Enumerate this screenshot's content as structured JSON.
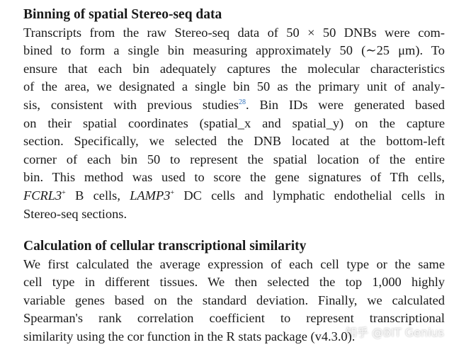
{
  "sections": [
    {
      "heading": "Binning of spatial Stereo-seq data",
      "lines": [
        [
          "Transcripts from the raw Stereo-seq data of 50 × 50 DNBs were com-"
        ],
        [
          "bined to form a single bin measuring approximately 50 (∼25 μm). To"
        ],
        [
          "ensure that each bin adequately captures the molecular characteristics"
        ],
        [
          "of the area, we designated a single bin 50 as the primary unit of analy-"
        ],
        [
          "sis, consistent with previous studies",
          {
            "text": "28",
            "style": "ref"
          },
          ". Bin IDs were generated based"
        ],
        [
          "on their spatial coordinates (spatial_x and spatial_y) on the capture"
        ],
        [
          "section. Specifically, we selected the DNB located at the bottom-left"
        ],
        [
          "corner of each bin 50 to represent the spatial location of the entire"
        ],
        [
          "bin. This method was used to score the gene signatures of Tfh cells,"
        ],
        [
          {
            "text": "FCRL3",
            "style": "italic"
          },
          {
            "text": "+",
            "style": "sup"
          },
          " B cells, ",
          {
            "text": "LAMP3",
            "style": "italic"
          },
          {
            "text": "+",
            "style": "sup"
          },
          " DC cells and lymphatic endothelial cells in"
        ],
        [
          "Stereo-seq sections."
        ]
      ]
    },
    {
      "heading": "Calculation of cellular transcriptional similarity",
      "lines": [
        [
          "We first calculated the average expression of each cell type or the same"
        ],
        [
          "cell type in different tissues. We then selected the top 1,000 highly"
        ],
        [
          "variable genes based on the standard deviation. Finally, we calculated"
        ],
        [
          "Spearman's rank correlation coefficient to represent transcriptional"
        ],
        [
          "similarity using the cor function in the R stats package (v4.3.0)."
        ]
      ]
    }
  ],
  "watermark": "知乎 @BIT Genius"
}
